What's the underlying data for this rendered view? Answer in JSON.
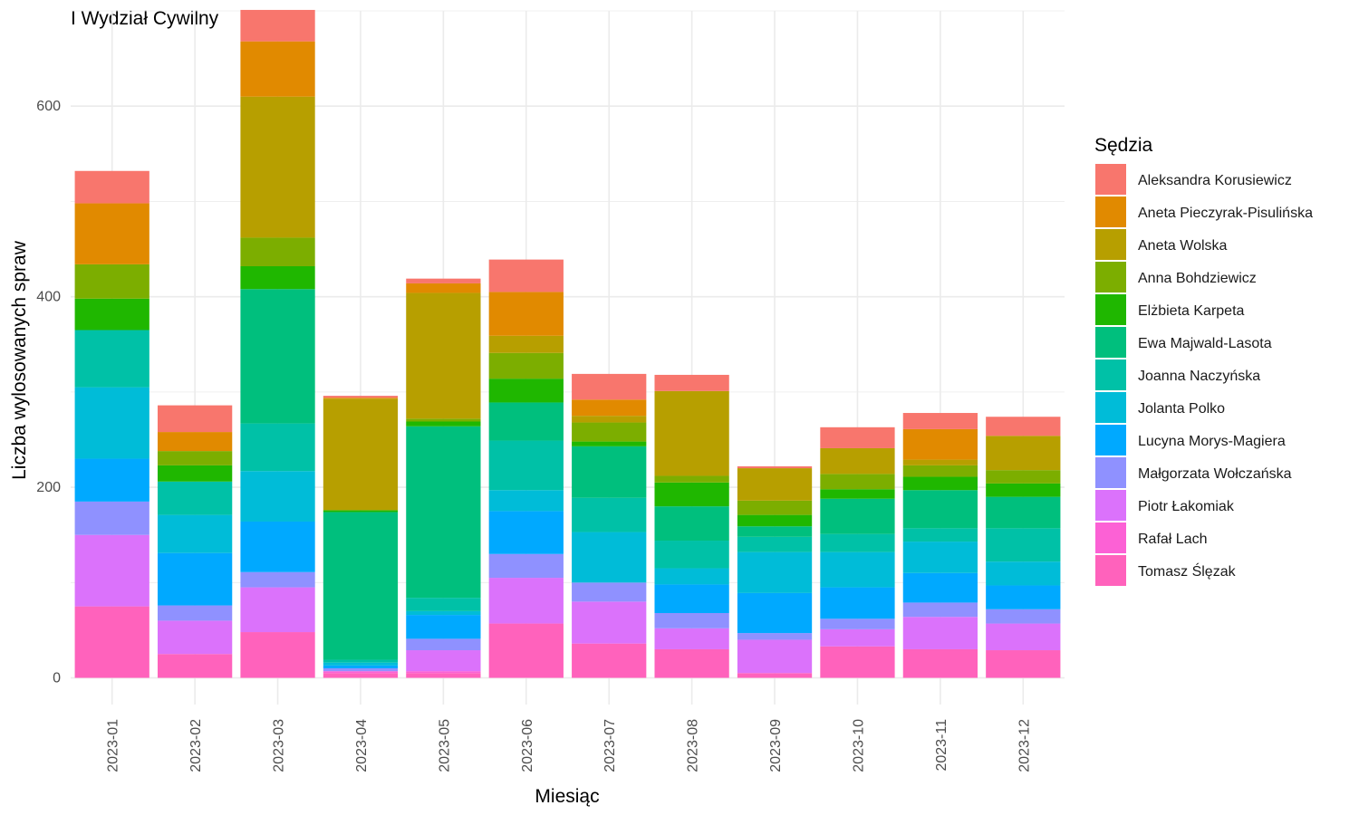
{
  "chart_data": {
    "type": "bar",
    "stacked": true,
    "title": "I Wydział Cywilny",
    "xlabel": "Miesiąc",
    "ylabel": "Liczba wylosowanych spraw",
    "ylim": [
      -28,
      700
    ],
    "yticks": [
      0,
      200,
      400,
      600
    ],
    "grid": true,
    "legend": {
      "title": "Sędzia",
      "position": "right"
    },
    "categories": [
      "2023-01",
      "2023-02",
      "2023-03",
      "2023-04",
      "2023-05",
      "2023-06",
      "2023-07",
      "2023-08",
      "2023-09",
      "2023-10",
      "2023-11",
      "2023-12"
    ],
    "series": [
      {
        "name": "Tomasz Ślęzak",
        "color": "#FF62BC",
        "values": [
          75,
          25,
          48,
          5,
          5,
          57,
          36,
          30,
          5,
          33,
          30,
          29
        ]
      },
      {
        "name": "Rafał Lach",
        "color": "#FC61D5",
        "values": [
          0,
          0,
          0,
          2,
          2,
          0,
          0,
          0,
          0,
          0,
          0,
          0
        ]
      },
      {
        "name": "Piotr Łakomiak",
        "color": "#DB72FB",
        "values": [
          75,
          35,
          47,
          0,
          22,
          48,
          44,
          22,
          35,
          18,
          34,
          28
        ]
      },
      {
        "name": "Małgorzata Wołczańska",
        "color": "#8F91FF",
        "values": [
          35,
          16,
          16,
          3,
          12,
          25,
          20,
          16,
          7,
          11,
          15,
          15
        ]
      },
      {
        "name": "Lucyna Morys-Magiera",
        "color": "#00A9FF",
        "values": [
          45,
          55,
          53,
          3,
          25,
          45,
          0,
          30,
          42,
          33,
          31,
          25
        ]
      },
      {
        "name": "Jolanta Polko",
        "color": "#00BCD8",
        "values": [
          75,
          40,
          53,
          3,
          4,
          22,
          53,
          17,
          43,
          37,
          33,
          25
        ]
      },
      {
        "name": "Joanna Naczyńska",
        "color": "#00C1A7",
        "values": [
          60,
          35,
          50,
          3,
          14,
          52,
          36,
          29,
          16,
          19,
          14,
          35
        ]
      },
      {
        "name": "Ewa Majwald-Lasota",
        "color": "#00BF7D",
        "values": [
          0,
          0,
          141,
          155,
          180,
          40,
          54,
          36,
          11,
          37,
          40,
          33
        ]
      },
      {
        "name": "Elżbieta Karpeta",
        "color": "#1FB700",
        "values": [
          33,
          17,
          24,
          2,
          5,
          25,
          5,
          25,
          12,
          10,
          14,
          14
        ]
      },
      {
        "name": "Anna Bohdziewicz",
        "color": "#7CAE00",
        "values": [
          36,
          15,
          30,
          0,
          3,
          27,
          20,
          7,
          15,
          16,
          12,
          14
        ]
      },
      {
        "name": "Aneta Wolska",
        "color": "#B79F00",
        "values": [
          0,
          0,
          148,
          117,
          132,
          18,
          7,
          89,
          34,
          27,
          6,
          36
        ]
      },
      {
        "name": "Aneta Pieczyrak-Pisulińska",
        "color": "#E18A00",
        "values": [
          64,
          20,
          58,
          1,
          10,
          46,
          17,
          0,
          0,
          0,
          32,
          0
        ]
      },
      {
        "name": "Aleksandra Korusiewicz",
        "color": "#F8766D",
        "values": [
          34,
          28,
          33,
          2,
          5,
          34,
          27,
          17,
          2,
          22,
          17,
          20
        ]
      }
    ]
  }
}
